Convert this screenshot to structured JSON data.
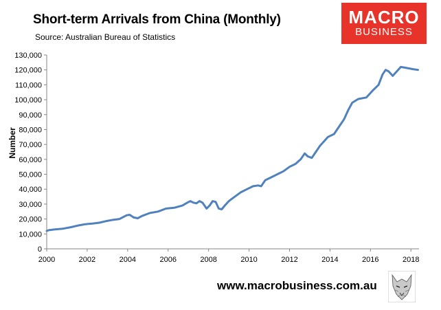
{
  "header": {
    "title": "Short-term Arrivals from China (Monthly)",
    "source": "Source: Australian Bureau of Statistics"
  },
  "logo": {
    "line1": "MACRO",
    "line2": "BUSINESS",
    "color": "#e8332a"
  },
  "footer": {
    "website": "www.macrobusiness.com.au"
  },
  "chart_data": {
    "type": "line",
    "title": "Short-term Arrivals from China (Monthly)",
    "ylabel": "Number",
    "xlabel": "",
    "xlim": [
      2000,
      2018.4
    ],
    "ylim": [
      0,
      130000
    ],
    "x_ticks": [
      2000,
      2002,
      2004,
      2006,
      2008,
      2010,
      2012,
      2014,
      2016,
      2018
    ],
    "x_tick_labels": [
      "2000",
      "2002",
      "2004",
      "2006",
      "2008",
      "2010",
      "2012",
      "2014",
      "2016",
      "2018"
    ],
    "y_ticks": [
      0,
      10000,
      20000,
      30000,
      40000,
      50000,
      60000,
      70000,
      80000,
      90000,
      100000,
      110000,
      120000,
      130000
    ],
    "y_tick_labels": [
      "0",
      "10,000",
      "20,000",
      "30,000",
      "40,000",
      "50,000",
      "60,000",
      "70,000",
      "80,000",
      "90,000",
      "100,000",
      "110,000",
      "120,000",
      "130,000"
    ],
    "grid": false,
    "legend": "none",
    "line_color": "#4f81bd",
    "series": [
      {
        "x": [
          2000,
          2000.1,
          2000.4,
          2000.8,
          2001.2,
          2001.5,
          2001.9,
          2002.3,
          2002.6,
          2002.9,
          2003.3,
          2003.6,
          2003.95,
          2004.1,
          2004.3,
          2004.5,
          2004.7,
          2005.1,
          2005.5,
          2005.9,
          2006.3,
          2006.7,
          2006.95,
          2007.1,
          2007.25,
          2007.4,
          2007.55,
          2007.7,
          2007.9,
          2008.05,
          2008.2,
          2008.35,
          2008.5,
          2008.65,
          2008.8,
          2009.0,
          2009.3,
          2009.6,
          2009.9,
          2010.2,
          2010.45,
          2010.6,
          2010.8,
          2011.1,
          2011.4,
          2011.7,
          2012.0,
          2012.3,
          2012.55,
          2012.75,
          2012.9,
          2013.1,
          2013.3,
          2013.5,
          2013.7,
          2013.9,
          2014.2,
          2014.5,
          2014.7,
          2014.9,
          2015.1,
          2015.4,
          2015.8,
          2016.1,
          2016.4,
          2016.6,
          2016.75,
          2016.9,
          2017.1,
          2017.3,
          2017.5,
          2017.7,
          2017.9,
          2018.1,
          2018.35
        ],
        "y": [
          12000,
          12500,
          13000,
          13500,
          14500,
          15500,
          16500,
          17000,
          17500,
          18500,
          19500,
          20000,
          22500,
          22800,
          21000,
          20500,
          22000,
          24000,
          25000,
          27000,
          27500,
          29000,
          31000,
          32000,
          31000,
          30500,
          32000,
          31000,
          27000,
          29000,
          32000,
          31500,
          27000,
          26500,
          29000,
          32000,
          35000,
          38000,
          40000,
          42000,
          42500,
          42000,
          46000,
          48000,
          50000,
          52000,
          55000,
          57000,
          60000,
          64000,
          62000,
          61000,
          65000,
          69000,
          72000,
          75000,
          77000,
          83000,
          87000,
          93000,
          98000,
          100500,
          101500,
          106000,
          110000,
          117000,
          120000,
          119000,
          116000,
          119000,
          122000,
          121500,
          121000,
          120500,
          120000
        ]
      }
    ]
  }
}
